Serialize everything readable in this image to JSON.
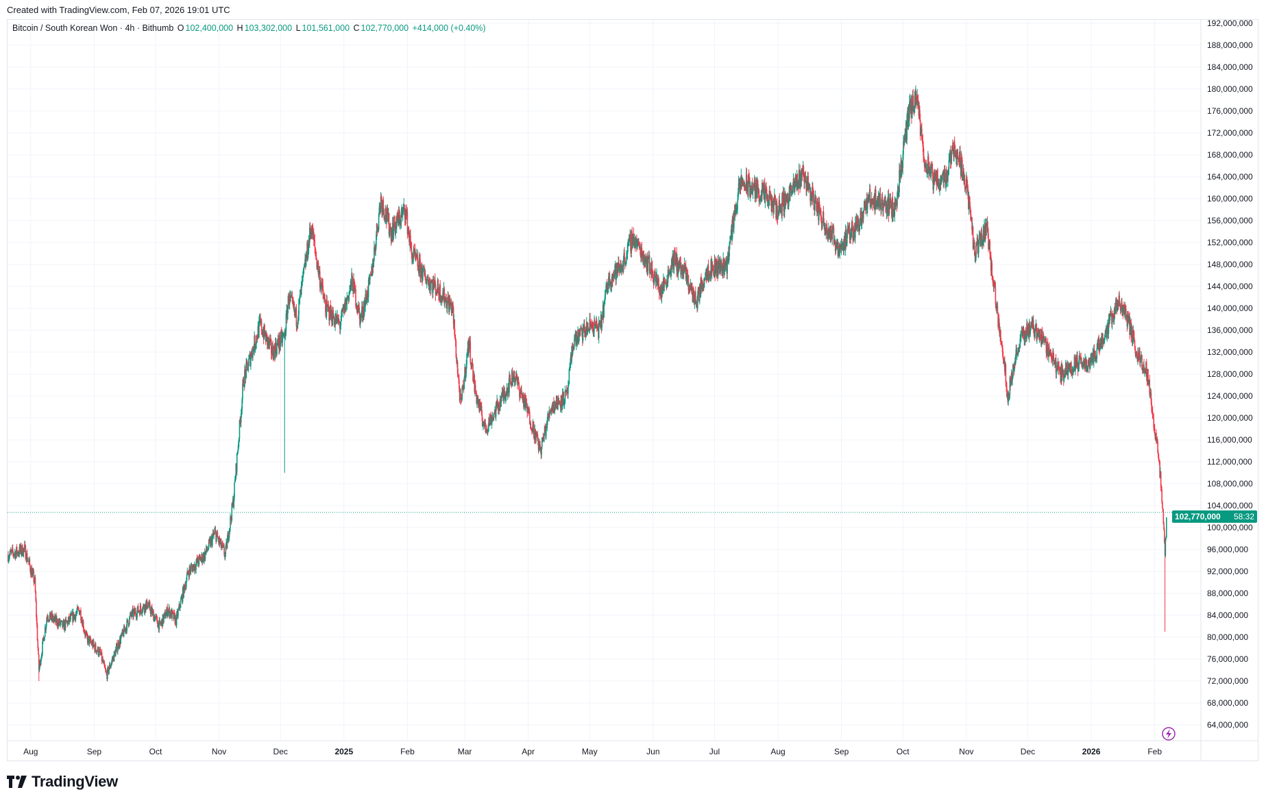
{
  "header": {
    "created": "Created with TradingView.com, Feb 07, 2026 19:01 UTC"
  },
  "legend": {
    "symbol": "Bitcoin / South Korean Won · 4h · Bithumb",
    "o_label": "O",
    "o": "102,400,000",
    "h_label": "H",
    "h": "103,302,000",
    "l_label": "L",
    "l": "101,561,000",
    "c_label": "C",
    "c": "102,770,000",
    "change": "+414,000 (+0.40%)"
  },
  "price_tag": {
    "price": "102,770,000",
    "countdown": "58:32"
  },
  "logo": {
    "text": "TradingView"
  },
  "colors": {
    "up": "#089981",
    "down": "#f23645",
    "grid": "#f0f3fa",
    "last_price": "#089981",
    "alert_icon": "#9c27b0"
  },
  "icons": {
    "alert": "lightning-icon"
  },
  "chart_data": {
    "type": "candlestick",
    "timeframe": "4h",
    "ylim": [
      62000000,
      194000000
    ],
    "grid": true,
    "y_ticks": [
      "64,000,000",
      "68,000,000",
      "72,000,000",
      "76,000,000",
      "80,000,000",
      "84,000,000",
      "88,000,000",
      "92,000,000",
      "96,000,000",
      "100,000,000",
      "104,000,000",
      "108,000,000",
      "112,000,000",
      "116,000,000",
      "120,000,000",
      "124,000,000",
      "128,000,000",
      "132,000,000",
      "136,000,000",
      "140,000,000",
      "144,000,000",
      "148,000,000",
      "152,000,000",
      "156,000,000",
      "160,000,000",
      "164,000,000",
      "168,000,000",
      "172,000,000",
      "176,000,000",
      "180,000,000",
      "184,000,000",
      "188,000,000",
      "192,000,000"
    ],
    "x_ticks": [
      {
        "label": "Aug",
        "date": "2024-08-01"
      },
      {
        "label": "Sep",
        "date": "2024-09-01"
      },
      {
        "label": "Oct",
        "date": "2024-10-01"
      },
      {
        "label": "Nov",
        "date": "2024-11-01"
      },
      {
        "label": "Dec",
        "date": "2024-12-01"
      },
      {
        "label": "2025",
        "date": "2025-01-01",
        "bold": true
      },
      {
        "label": "Feb",
        "date": "2025-02-01"
      },
      {
        "label": "Mar",
        "date": "2025-03-01"
      },
      {
        "label": "Apr",
        "date": "2025-04-01"
      },
      {
        "label": "May",
        "date": "2025-05-01"
      },
      {
        "label": "Jun",
        "date": "2025-06-01"
      },
      {
        "label": "Jul",
        "date": "2025-07-01"
      },
      {
        "label": "Aug",
        "date": "2025-08-01"
      },
      {
        "label": "Sep",
        "date": "2025-09-01"
      },
      {
        "label": "Oct",
        "date": "2025-10-01"
      },
      {
        "label": "Nov",
        "date": "2025-11-01"
      },
      {
        "label": "Dec",
        "date": "2025-12-01"
      },
      {
        "label": "2026",
        "date": "2026-01-01",
        "bold": true
      },
      {
        "label": "Feb",
        "date": "2026-02-01"
      }
    ],
    "last_price": 102770000,
    "approx_close_path": [
      [
        "2024-07-21",
        95
      ],
      [
        "2024-07-29",
        96
      ],
      [
        "2024-08-03",
        90
      ],
      [
        "2024-08-05",
        74
      ],
      [
        "2024-08-09",
        84
      ],
      [
        "2024-08-17",
        82
      ],
      [
        "2024-08-25",
        85
      ],
      [
        "2024-08-28",
        80
      ],
      [
        "2024-09-04",
        77
      ],
      [
        "2024-09-07",
        73
      ],
      [
        "2024-09-12",
        78
      ],
      [
        "2024-09-19",
        84
      ],
      [
        "2024-09-27",
        86
      ],
      [
        "2024-10-03",
        82
      ],
      [
        "2024-10-07",
        85
      ],
      [
        "2024-10-11",
        83
      ],
      [
        "2024-10-17",
        92
      ],
      [
        "2024-10-25",
        95
      ],
      [
        "2024-10-30",
        99
      ],
      [
        "2024-11-04",
        95
      ],
      [
        "2024-11-08",
        105
      ],
      [
        "2024-11-13",
        127
      ],
      [
        "2024-11-21",
        137
      ],
      [
        "2024-11-27",
        132
      ],
      [
        "2024-12-03",
        135
      ],
      [
        "2024-12-05",
        142
      ],
      [
        "2024-12-09",
        138
      ],
      [
        "2024-12-16",
        155
      ],
      [
        "2024-12-19",
        148
      ],
      [
        "2024-12-23",
        140
      ],
      [
        "2024-12-30",
        137
      ],
      [
        "2025-01-05",
        145
      ],
      [
        "2025-01-09",
        138
      ],
      [
        "2025-01-14",
        145
      ],
      [
        "2025-01-19",
        160
      ],
      [
        "2025-01-24",
        154
      ],
      [
        "2025-01-31",
        158
      ],
      [
        "2025-02-03",
        150
      ],
      [
        "2025-02-09",
        146
      ],
      [
        "2025-02-17",
        143
      ],
      [
        "2025-02-23",
        140
      ],
      [
        "2025-02-27",
        122
      ],
      [
        "2025-03-03",
        134
      ],
      [
        "2025-03-06",
        125
      ],
      [
        "2025-03-11",
        118
      ],
      [
        "2025-03-17",
        122
      ],
      [
        "2025-03-25",
        128
      ],
      [
        "2025-03-31",
        122
      ],
      [
        "2025-04-07",
        114
      ],
      [
        "2025-04-12",
        122
      ],
      [
        "2025-04-20",
        124
      ],
      [
        "2025-04-23",
        134
      ],
      [
        "2025-05-02",
        137
      ],
      [
        "2025-05-06",
        136
      ],
      [
        "2025-05-10",
        145
      ],
      [
        "2025-05-17",
        148
      ],
      [
        "2025-05-22",
        153
      ],
      [
        "2025-05-30",
        148
      ],
      [
        "2025-06-05",
        143
      ],
      [
        "2025-06-11",
        149
      ],
      [
        "2025-06-17",
        146
      ],
      [
        "2025-06-22",
        141
      ],
      [
        "2025-06-27",
        147
      ],
      [
        "2025-07-07",
        148
      ],
      [
        "2025-07-11",
        158
      ],
      [
        "2025-07-14",
        163
      ],
      [
        "2025-07-24",
        161
      ],
      [
        "2025-08-01",
        158
      ],
      [
        "2025-08-09",
        162
      ],
      [
        "2025-08-13",
        165
      ],
      [
        "2025-08-17",
        161
      ],
      [
        "2025-08-23",
        156
      ],
      [
        "2025-08-31",
        151
      ],
      [
        "2025-09-08",
        155
      ],
      [
        "2025-09-15",
        160
      ],
      [
        "2025-09-23",
        159
      ],
      [
        "2025-09-27",
        158
      ],
      [
        "2025-10-01",
        168
      ],
      [
        "2025-10-04",
        176
      ],
      [
        "2025-10-08",
        178
      ],
      [
        "2025-10-11",
        168
      ],
      [
        "2025-10-16",
        163
      ],
      [
        "2025-10-22",
        164
      ],
      [
        "2025-10-26",
        170
      ],
      [
        "2025-11-01",
        163
      ],
      [
        "2025-11-05",
        150
      ],
      [
        "2025-11-11",
        155
      ],
      [
        "2025-11-15",
        142
      ],
      [
        "2025-11-19",
        132
      ],
      [
        "2025-11-21",
        124
      ],
      [
        "2025-11-27",
        134
      ],
      [
        "2025-12-03",
        137
      ],
      [
        "2025-12-09",
        134
      ],
      [
        "2025-12-17",
        128
      ],
      [
        "2025-12-25",
        130
      ],
      [
        "2025-12-31",
        130
      ],
      [
        "2026-01-06",
        134
      ],
      [
        "2026-01-14",
        141
      ],
      [
        "2026-01-18",
        139
      ],
      [
        "2026-01-24",
        131
      ],
      [
        "2026-01-28",
        129
      ],
      [
        "2026-02-01",
        118
      ],
      [
        "2026-02-03",
        113
      ],
      [
        "2026-02-05",
        102
      ],
      [
        "2026-02-06",
        95
      ],
      [
        "2026-02-07",
        102.77
      ]
    ],
    "approx_close_unit": "million KRW",
    "notable_wicks": [
      [
        "2024-08-05",
        72
      ],
      [
        "2024-12-03",
        110
      ],
      [
        "2026-02-06",
        81
      ]
    ]
  }
}
